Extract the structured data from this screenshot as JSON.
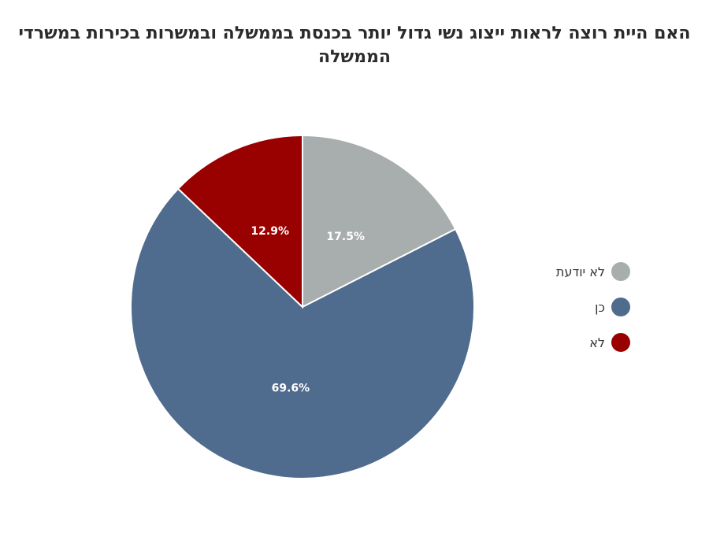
{
  "chart_data": {
    "type": "pie",
    "title": "האם היית רוצה לראות ייצוג נשי גדול יותר בכנסת בממשלה ובמשרות בכירות במשרדי הממשלה",
    "slices": [
      {
        "label": "לא יודעת",
        "value": 17.5,
        "display": "17.5%",
        "color": "#a8adad"
      },
      {
        "label": "כן",
        "value": 69.6,
        "display": "69.6%",
        "color": "#4f6b8d"
      },
      {
        "label": "לא",
        "value": 12.9,
        "display": "12.9%",
        "color": "#990000"
      }
    ],
    "start_angle_deg": 0,
    "direction": "clockwise",
    "legend_position": "right"
  }
}
